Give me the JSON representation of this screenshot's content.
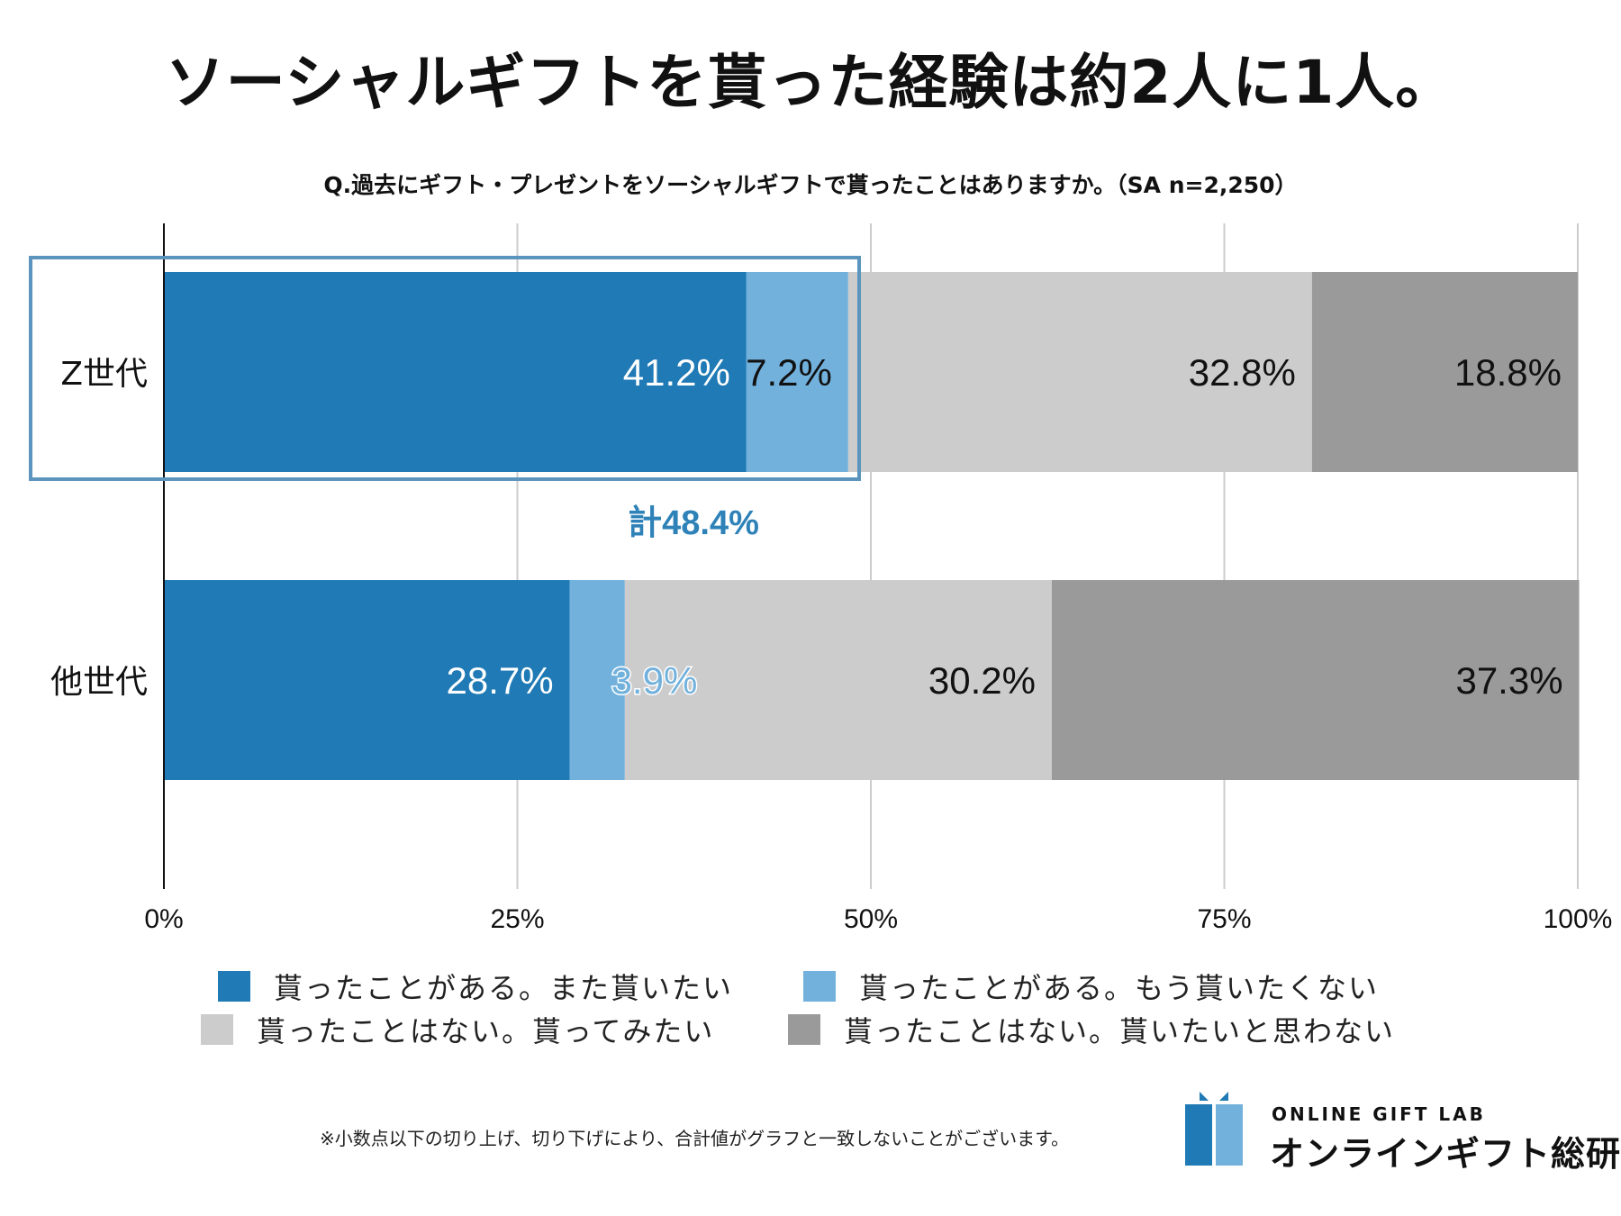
{
  "title": "ソーシャルギフトを貰った経験は約2人に1人。",
  "colors": {
    "s1": "#1f7ab5",
    "s2": "#72b1dc",
    "s3": "#cccccc",
    "s4": "#9a9a9a",
    "highlight": "#5b94bd",
    "callout": "#2e82b8",
    "axis": "#111111",
    "grid": "#cccccc"
  },
  "chart_data": {
    "type": "bar",
    "orientation": "horizontal-stacked",
    "title": "Q.過去にギフト・プレゼントをソーシャルギフトで貰ったことはありますか。（SA n=2,250）",
    "categories": [
      "Z世代",
      "他世代"
    ],
    "series": [
      {
        "name": "貰ったことがある。また貰いたい",
        "values": [
          41.2,
          28.7
        ],
        "labels": [
          "41.2%",
          "28.7%"
        ]
      },
      {
        "name": "貰ったことがある。もう貰いたくない",
        "values": [
          7.2,
          3.9
        ],
        "labels": [
          "7.2%",
          "3.9%"
        ]
      },
      {
        "name": "貰ったことはない。貰ってみたい",
        "values": [
          32.8,
          30.2
        ],
        "labels": [
          "32.8%",
          "30.2%"
        ]
      },
      {
        "name": "貰ったことはない。貰いたいと思わない",
        "values": [
          18.8,
          37.3
        ],
        "labels": [
          "18.8%",
          "37.3%"
        ]
      }
    ],
    "xlim": [
      0,
      100
    ],
    "xticks": [
      0,
      25,
      50,
      75,
      100
    ],
    "xtick_labels": [
      "0%",
      "25%",
      "50%",
      "75%",
      "100%"
    ],
    "grid": true,
    "legend_position": "bottom",
    "annotation": "計48.4%"
  },
  "footnote": "※小数点以下の切り上げ、切り下げにより、合計値がグラフと一致しないことがございます。",
  "logo": {
    "en": "ONLINE GIFT LAB",
    "ja": "オンラインギフト総研"
  }
}
